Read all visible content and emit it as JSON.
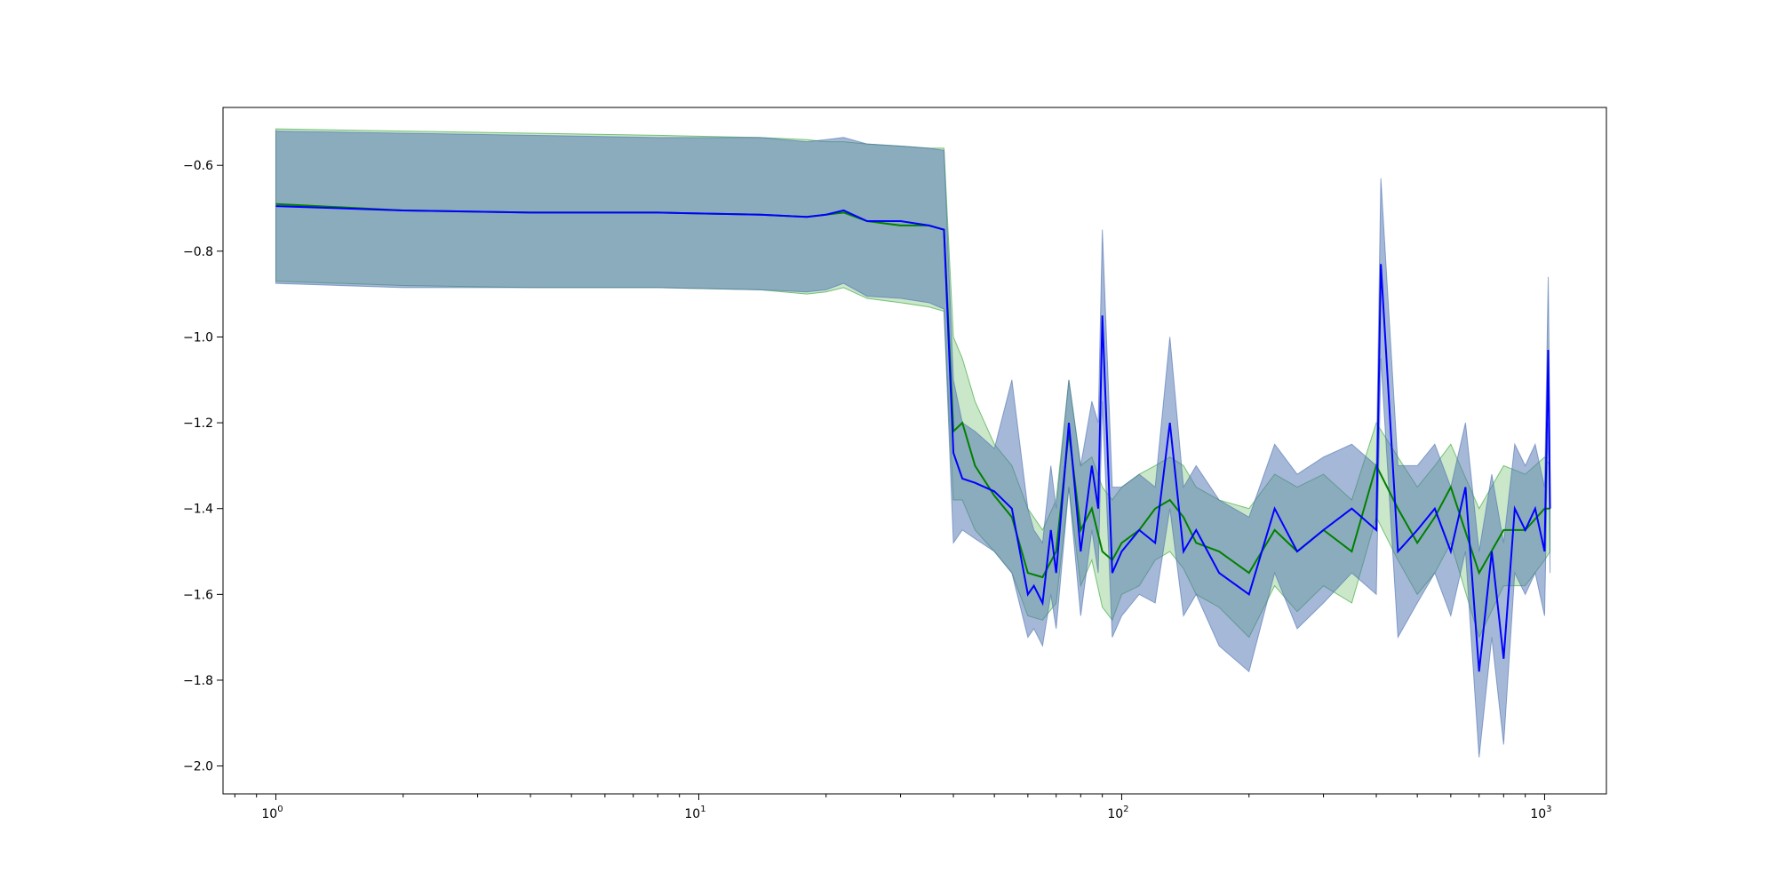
{
  "chart_data": {
    "type": "line",
    "title": "",
    "xlabel": "",
    "ylabel": "",
    "x_scale": "log",
    "xlim": [
      0.75,
      1400
    ],
    "ylim": [
      -2.065,
      -0.465
    ],
    "x_tick_labels": [
      {
        "value": 1,
        "base": "10",
        "exp": "0"
      },
      {
        "value": 10,
        "base": "10",
        "exp": "1"
      },
      {
        "value": 100,
        "base": "10",
        "exp": "2"
      },
      {
        "value": 1000,
        "base": "10",
        "exp": "3"
      }
    ],
    "y_ticks": [
      -0.6,
      -0.8,
      -1.0,
      -1.2,
      -1.4,
      -1.6,
      -1.8,
      -2.0
    ],
    "y_tick_labels": [
      "−0.6",
      "−0.8",
      "−1.0",
      "−1.2",
      "−1.4",
      "−1.6",
      "−1.8",
      "−2.0"
    ],
    "grid": false,
    "legend": "none",
    "series": [
      {
        "color": "#008000",
        "band_color": "#2ca02c",
        "x": [
          1,
          2,
          4,
          8,
          14,
          18,
          20,
          22,
          25,
          30,
          35,
          38,
          40,
          42,
          45,
          50,
          55,
          60,
          65,
          70,
          75,
          80,
          85,
          90,
          95,
          100,
          110,
          120,
          130,
          140,
          150,
          170,
          200,
          230,
          260,
          300,
          350,
          400,
          450,
          500,
          550,
          600,
          700,
          800,
          900,
          1000,
          1030
        ],
        "y": [
          -0.69,
          -0.705,
          -0.71,
          -0.71,
          -0.715,
          -0.72,
          -0.715,
          -0.71,
          -0.73,
          -0.74,
          -0.74,
          -0.75,
          -1.22,
          -1.2,
          -1.3,
          -1.37,
          -1.42,
          -1.55,
          -1.56,
          -1.5,
          -1.22,
          -1.45,
          -1.4,
          -1.5,
          -1.52,
          -1.48,
          -1.45,
          -1.4,
          -1.38,
          -1.42,
          -1.48,
          -1.5,
          -1.55,
          -1.45,
          -1.5,
          -1.45,
          -1.5,
          -1.3,
          -1.4,
          -1.48,
          -1.42,
          -1.35,
          -1.55,
          -1.45,
          -1.45,
          -1.4,
          -1.4
        ],
        "upper": [
          -0.515,
          -0.52,
          -0.525,
          -0.53,
          -0.535,
          -0.54,
          -0.545,
          -0.545,
          -0.55,
          -0.555,
          -0.56,
          -0.56,
          -1.0,
          -1.05,
          -1.15,
          -1.25,
          -1.3,
          -1.4,
          -1.45,
          -1.38,
          -1.1,
          -1.3,
          -1.28,
          -1.35,
          -1.38,
          -1.35,
          -1.32,
          -1.3,
          -1.28,
          -1.3,
          -1.35,
          -1.38,
          -1.4,
          -1.32,
          -1.35,
          -1.32,
          -1.38,
          -1.2,
          -1.28,
          -1.35,
          -1.3,
          -1.25,
          -1.4,
          -1.3,
          -1.32,
          -1.28,
          -1.3
        ],
        "lower": [
          -0.87,
          -0.88,
          -0.885,
          -0.885,
          -0.89,
          -0.9,
          -0.895,
          -0.885,
          -0.91,
          -0.92,
          -0.93,
          -0.94,
          -1.38,
          -1.38,
          -1.45,
          -1.5,
          -1.55,
          -1.65,
          -1.66,
          -1.62,
          -1.35,
          -1.58,
          -1.52,
          -1.63,
          -1.66,
          -1.6,
          -1.58,
          -1.52,
          -1.5,
          -1.54,
          -1.6,
          -1.63,
          -1.7,
          -1.58,
          -1.64,
          -1.58,
          -1.62,
          -1.42,
          -1.52,
          -1.6,
          -1.55,
          -1.48,
          -1.7,
          -1.58,
          -1.58,
          -1.52,
          -1.5
        ]
      },
      {
        "color": "#0000ff",
        "band_color": "#4c72b0",
        "x": [
          1,
          2,
          4,
          8,
          14,
          18,
          20,
          22,
          25,
          30,
          35,
          38,
          40,
          42,
          45,
          50,
          55,
          60,
          62,
          65,
          68,
          70,
          75,
          80,
          85,
          88,
          90,
          95,
          100,
          110,
          120,
          130,
          140,
          150,
          170,
          200,
          230,
          260,
          300,
          350,
          400,
          410,
          450,
          500,
          550,
          600,
          650,
          700,
          750,
          800,
          850,
          900,
          950,
          1000,
          1020,
          1030
        ],
        "y": [
          -0.695,
          -0.705,
          -0.71,
          -0.71,
          -0.715,
          -0.72,
          -0.715,
          -0.705,
          -0.73,
          -0.73,
          -0.74,
          -0.75,
          -1.27,
          -1.33,
          -1.34,
          -1.36,
          -1.4,
          -1.6,
          -1.58,
          -1.62,
          -1.45,
          -1.55,
          -1.2,
          -1.5,
          -1.3,
          -1.4,
          -0.95,
          -1.55,
          -1.5,
          -1.45,
          -1.48,
          -1.2,
          -1.5,
          -1.45,
          -1.55,
          -1.6,
          -1.4,
          -1.5,
          -1.45,
          -1.4,
          -1.45,
          -0.83,
          -1.5,
          -1.45,
          -1.4,
          -1.5,
          -1.35,
          -1.78,
          -1.5,
          -1.75,
          -1.4,
          -1.45,
          -1.4,
          -1.5,
          -1.03,
          -1.4
        ],
        "upper": [
          -0.52,
          -0.525,
          -0.53,
          -0.535,
          -0.535,
          -0.545,
          -0.54,
          -0.535,
          -0.55,
          -0.555,
          -0.56,
          -0.565,
          -1.1,
          -1.2,
          -1.22,
          -1.26,
          -1.1,
          -1.4,
          -1.45,
          -1.48,
          -1.3,
          -1.4,
          -1.1,
          -1.3,
          -1.15,
          -1.2,
          -0.75,
          -1.35,
          -1.35,
          -1.32,
          -1.35,
          -1.0,
          -1.35,
          -1.3,
          -1.38,
          -1.42,
          -1.25,
          -1.32,
          -1.28,
          -1.25,
          -1.3,
          -0.63,
          -1.3,
          -1.3,
          -1.25,
          -1.35,
          -1.2,
          -1.5,
          -1.32,
          -1.48,
          -1.25,
          -1.3,
          -1.25,
          -1.35,
          -0.86,
          -1.25
        ],
        "lower": [
          -0.875,
          -0.885,
          -0.885,
          -0.885,
          -0.89,
          -0.895,
          -0.89,
          -0.875,
          -0.905,
          -0.91,
          -0.92,
          -0.935,
          -1.48,
          -1.45,
          -1.47,
          -1.5,
          -1.55,
          -1.7,
          -1.68,
          -1.72,
          -1.6,
          -1.68,
          -1.35,
          -1.65,
          -1.45,
          -1.55,
          -1.15,
          -1.7,
          -1.65,
          -1.6,
          -1.62,
          -1.4,
          -1.65,
          -1.6,
          -1.72,
          -1.78,
          -1.55,
          -1.68,
          -1.62,
          -1.55,
          -1.6,
          -1.05,
          -1.7,
          -1.62,
          -1.55,
          -1.65,
          -1.5,
          -1.98,
          -1.7,
          -1.95,
          -1.55,
          -1.6,
          -1.55,
          -1.65,
          -1.2,
          -1.55
        ]
      }
    ]
  }
}
